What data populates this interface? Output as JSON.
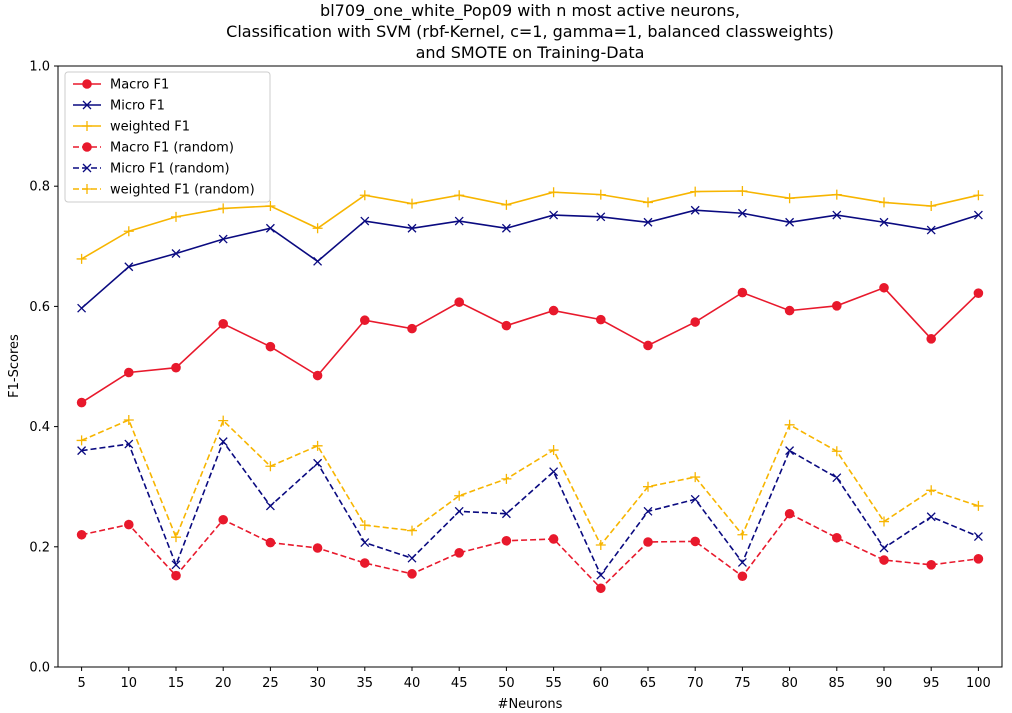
{
  "chart_data": {
    "type": "line",
    "title": [
      "bl709_one_white_Pop09 with n most active neurons,",
      "Classification with SVM (rbf-Kernel, c=1, gamma=1, balanced classweights)",
      "and SMOTE on Training-Data"
    ],
    "xlabel": "#Neurons",
    "ylabel": "F1-Scores",
    "ylim": [
      0.0,
      1.0
    ],
    "yticks": [
      "0.0",
      "0.2",
      "0.4",
      "0.6",
      "0.8",
      "1.0"
    ],
    "x": [
      5,
      10,
      15,
      20,
      25,
      30,
      35,
      40,
      45,
      50,
      55,
      60,
      65,
      70,
      75,
      80,
      85,
      90,
      95,
      100
    ],
    "legend_position": "top-left",
    "grid": false,
    "series": [
      {
        "name": "Macro F1",
        "color": "#e8192c",
        "dash": "solid",
        "marker": "circle",
        "values": [
          0.44,
          0.49,
          0.498,
          0.571,
          0.533,
          0.485,
          0.577,
          0.563,
          0.607,
          0.568,
          0.593,
          0.578,
          0.535,
          0.574,
          0.623,
          0.593,
          0.601,
          0.631,
          0.546,
          0.622
        ]
      },
      {
        "name": "Micro F1",
        "color": "#0a0a80",
        "dash": "solid",
        "marker": "x",
        "values": [
          0.597,
          0.666,
          0.688,
          0.712,
          0.73,
          0.675,
          0.742,
          0.73,
          0.742,
          0.73,
          0.752,
          0.749,
          0.74,
          0.76,
          0.755,
          0.74,
          0.752,
          0.74,
          0.727,
          0.752
        ]
      },
      {
        "name": "weighted F1",
        "color": "#f7b500",
        "dash": "solid",
        "marker": "plus",
        "values": [
          0.679,
          0.725,
          0.749,
          0.763,
          0.767,
          0.73,
          0.785,
          0.771,
          0.785,
          0.769,
          0.79,
          0.786,
          0.773,
          0.791,
          0.792,
          0.78,
          0.786,
          0.773,
          0.767,
          0.785
        ]
      },
      {
        "name": "Macro F1 (random)",
        "color": "#e8192c",
        "dash": "dashed",
        "marker": "circle",
        "values": [
          0.22,
          0.237,
          0.152,
          0.245,
          0.207,
          0.198,
          0.173,
          0.155,
          0.19,
          0.21,
          0.213,
          0.131,
          0.208,
          0.209,
          0.151,
          0.255,
          0.215,
          0.178,
          0.17,
          0.18
        ]
      },
      {
        "name": "Micro F1 (random)",
        "color": "#0a0a80",
        "dash": "dashed",
        "marker": "x",
        "values": [
          0.36,
          0.371,
          0.17,
          0.375,
          0.268,
          0.339,
          0.207,
          0.181,
          0.259,
          0.255,
          0.325,
          0.153,
          0.259,
          0.279,
          0.174,
          0.36,
          0.315,
          0.198,
          0.25,
          0.217
        ]
      },
      {
        "name": "weighted F1 (random)",
        "color": "#f7b500",
        "dash": "dashed",
        "marker": "plus",
        "values": [
          0.377,
          0.411,
          0.216,
          0.41,
          0.334,
          0.368,
          0.236,
          0.227,
          0.285,
          0.313,
          0.361,
          0.203,
          0.3,
          0.316,
          0.22,
          0.403,
          0.359,
          0.242,
          0.294,
          0.268
        ]
      }
    ]
  }
}
